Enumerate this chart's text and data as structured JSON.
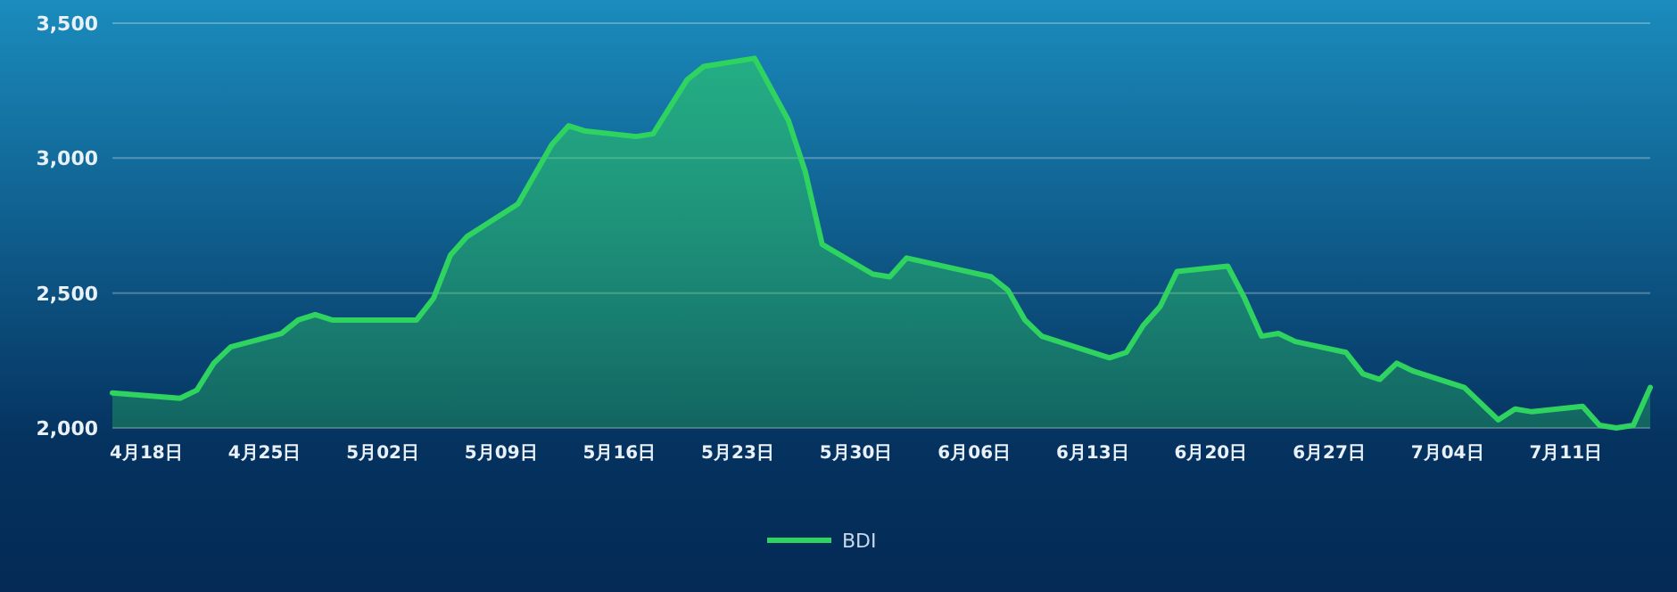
{
  "chart_data": {
    "type": "area",
    "x": [
      "--04-16",
      "--04-20",
      "--04-21",
      "--04-22",
      "--04-23",
      "--04-26",
      "--04-27",
      "--04-28",
      "--04-29",
      "--05-04",
      "--05-05",
      "--05-06",
      "--05-07",
      "--05-10",
      "--05-12",
      "--05-13",
      "--05-14",
      "--05-17",
      "--05-18",
      "--05-20",
      "--05-21",
      "--05-24",
      "--05-26",
      "--05-27",
      "--05-28",
      "--05-31",
      "--06-01",
      "--06-02",
      "--06-07",
      "--06-08",
      "--06-09",
      "--06-10",
      "--06-14",
      "--06-15",
      "--06-16",
      "--06-17",
      "--06-18",
      "--06-21",
      "--06-22",
      "--06-23",
      "--06-24",
      "--06-25",
      "--06-28",
      "--06-29",
      "--06-30",
      "--07-01",
      "--07-02",
      "--07-05",
      "--07-07",
      "--07-08",
      "--07-09",
      "--07-12",
      "--07-13",
      "--07-14",
      "--07-15",
      "--07-16"
    ],
    "series": [
      {
        "name": "BDI",
        "color": "#2fd35f",
        "values": [
          2130,
          2110,
          2140,
          2240,
          2300,
          2350,
          2400,
          2420,
          2400,
          2400,
          2480,
          2640,
          2710,
          2830,
          3050,
          3120,
          3100,
          3080,
          3090,
          3290,
          3340,
          3370,
          3140,
          2950,
          2680,
          2570,
          2560,
          2630,
          2560,
          2510,
          2400,
          2340,
          2260,
          2280,
          2380,
          2450,
          2580,
          2600,
          2480,
          2340,
          2350,
          2320,
          2280,
          2200,
          2180,
          2240,
          2210,
          2150,
          2030,
          2070,
          2060,
          2080,
          2010,
          2000,
          2010,
          2150
        ]
      }
    ],
    "xlim": [
      "--04-16",
      "--07-16"
    ],
    "xticks": [
      {
        "value": "--04-18",
        "label": "4月18日"
      },
      {
        "value": "--04-25",
        "label": "4月25日"
      },
      {
        "value": "--05-02",
        "label": "5月02日"
      },
      {
        "value": "--05-09",
        "label": "5月09日"
      },
      {
        "value": "--05-16",
        "label": "5月16日"
      },
      {
        "value": "--05-23",
        "label": "5月23日"
      },
      {
        "value": "--05-30",
        "label": "5月30日"
      },
      {
        "value": "--06-06",
        "label": "6月06日"
      },
      {
        "value": "--06-13",
        "label": "6月13日"
      },
      {
        "value": "--06-20",
        "label": "6月20日"
      },
      {
        "value": "--06-27",
        "label": "6月27日"
      },
      {
        "value": "--07-04",
        "label": "7月04日"
      },
      {
        "value": "--07-11",
        "label": "7月11日"
      }
    ],
    "ylim": [
      2000,
      3500
    ],
    "yticks": [
      {
        "value": 2000,
        "label": "2,000"
      },
      {
        "value": 2500,
        "label": "2,500"
      },
      {
        "value": 3000,
        "label": "3,000"
      },
      {
        "value": 3500,
        "label": "3,500"
      }
    ],
    "grid": "y",
    "legend": "bottom"
  }
}
